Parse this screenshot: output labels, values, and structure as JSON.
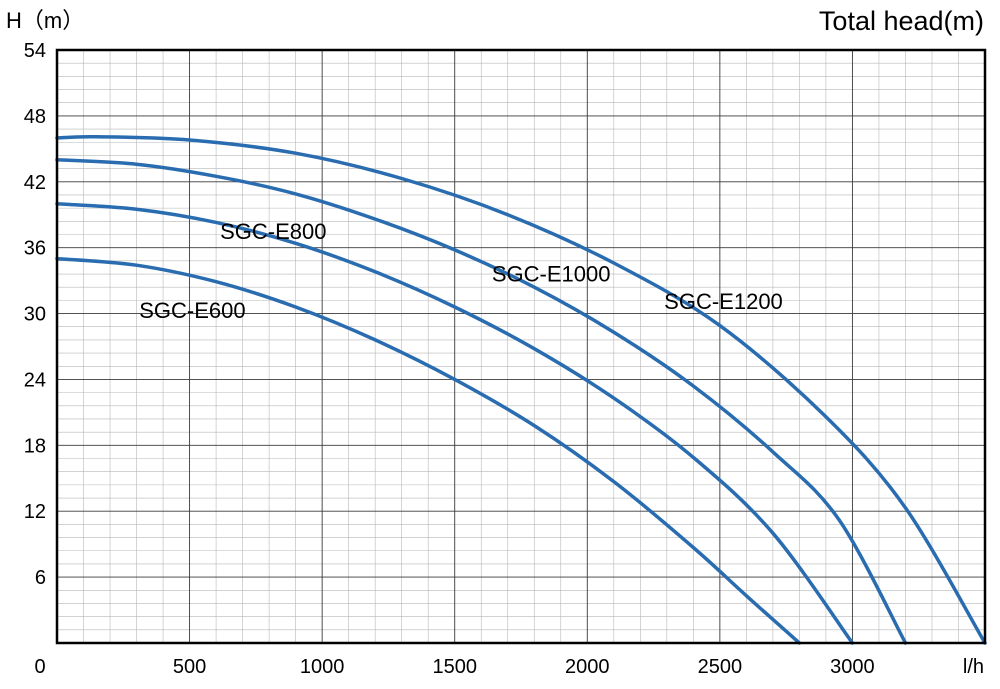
{
  "chart_data": {
    "type": "line",
    "title": "Total head(m)",
    "ylabel": "H（m）",
    "xlabel": "l/h",
    "xlim": [
      0,
      3500
    ],
    "ylim": [
      0,
      54
    ],
    "x_ticks": [
      0,
      500,
      1000,
      1500,
      2000,
      2500,
      3000
    ],
    "y_ticks": [
      6,
      12,
      18,
      24,
      30,
      36,
      42,
      48,
      54
    ],
    "grid": true,
    "line_color": "#2a6cb0",
    "series": [
      {
        "name": "SGC-E600",
        "x": [
          0,
          300,
          600,
          900,
          1200,
          1500,
          1800,
          2100,
          2400,
          2600,
          2800
        ],
        "y": [
          35,
          34.4,
          32.9,
          30.6,
          27.6,
          24,
          19.8,
          14.7,
          8.7,
          4.3,
          0
        ]
      },
      {
        "name": "SGC-E800",
        "x": [
          0,
          300,
          600,
          900,
          1200,
          1500,
          1800,
          2100,
          2400,
          2700,
          3000
        ],
        "y": [
          40,
          39.5,
          38.3,
          36.4,
          33.8,
          30.6,
          26.8,
          22.3,
          16.9,
          10,
          0
        ]
      },
      {
        "name": "SGC-E1000",
        "x": [
          0,
          300,
          600,
          900,
          1200,
          1500,
          1800,
          2100,
          2400,
          2700,
          2950,
          3200
        ],
        "y": [
          44,
          43.6,
          42.5,
          40.9,
          38.6,
          35.8,
          32.4,
          28.3,
          23.4,
          17.4,
          11.2,
          0
        ]
      },
      {
        "name": "SGC-E1200",
        "x": [
          0,
          150,
          500,
          900,
          1300,
          1700,
          2100,
          2500,
          2900,
          3200,
          3500
        ],
        "y": [
          46,
          46.1,
          45.8,
          44.6,
          42.3,
          39,
          34.6,
          28.9,
          20.6,
          12.3,
          0
        ]
      }
    ]
  }
}
